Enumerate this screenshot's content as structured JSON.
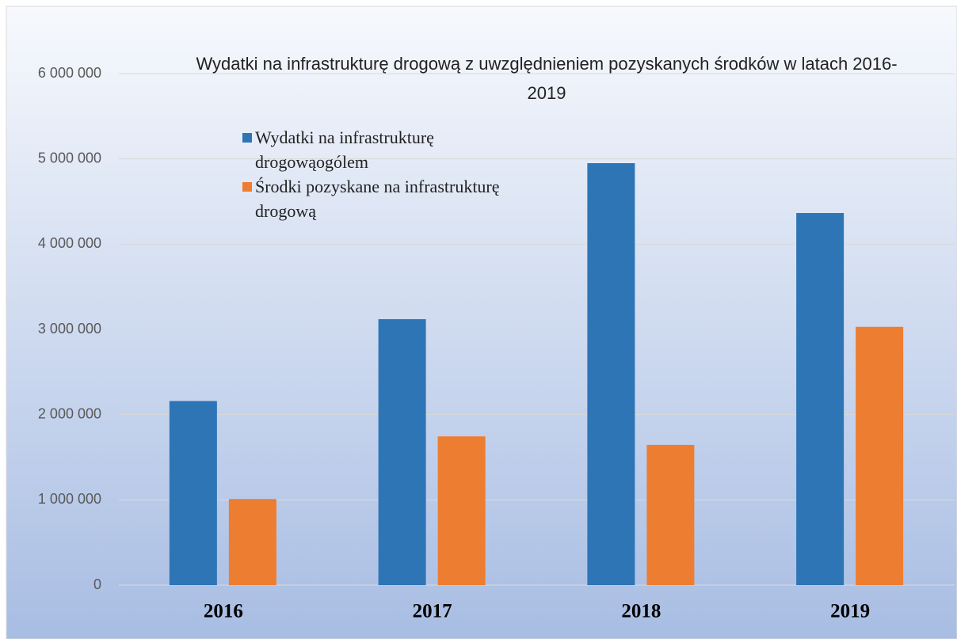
{
  "chart_data": {
    "type": "bar",
    "title": "Wydatki na infrastrukturę drogową z uwzględnieniem pozyskanych środków w latach 2016-2019",
    "categories": [
      "2016",
      "2017",
      "2018",
      "2019"
    ],
    "series": [
      {
        "name": "Wydatki na infrastrukturę drogowąogólem",
        "color": "#2e75b6",
        "values": [
          2160000,
          3120000,
          4950000,
          4365000
        ]
      },
      {
        "name": "Środki pozyskane na infrastrukturę drogową",
        "color": "#ed7d31",
        "values": [
          1010000,
          1745000,
          1645000,
          3030000
        ]
      }
    ],
    "ylim": [
      0,
      6000000
    ],
    "yticks": [
      0,
      {
        "value": 1000000,
        "label": "1 000 000"
      },
      {
        "value": 2000000,
        "label": "2 000 000"
      },
      {
        "value": 3000000,
        "label": "3 000 000"
      },
      {
        "value": 4000000,
        "label": "4 000 000"
      },
      {
        "value": 5000000,
        "label": "5 000 000"
      },
      {
        "value": 6000000,
        "label": "6 000 000"
      }
    ],
    "grid": true,
    "legend": "top-left"
  }
}
